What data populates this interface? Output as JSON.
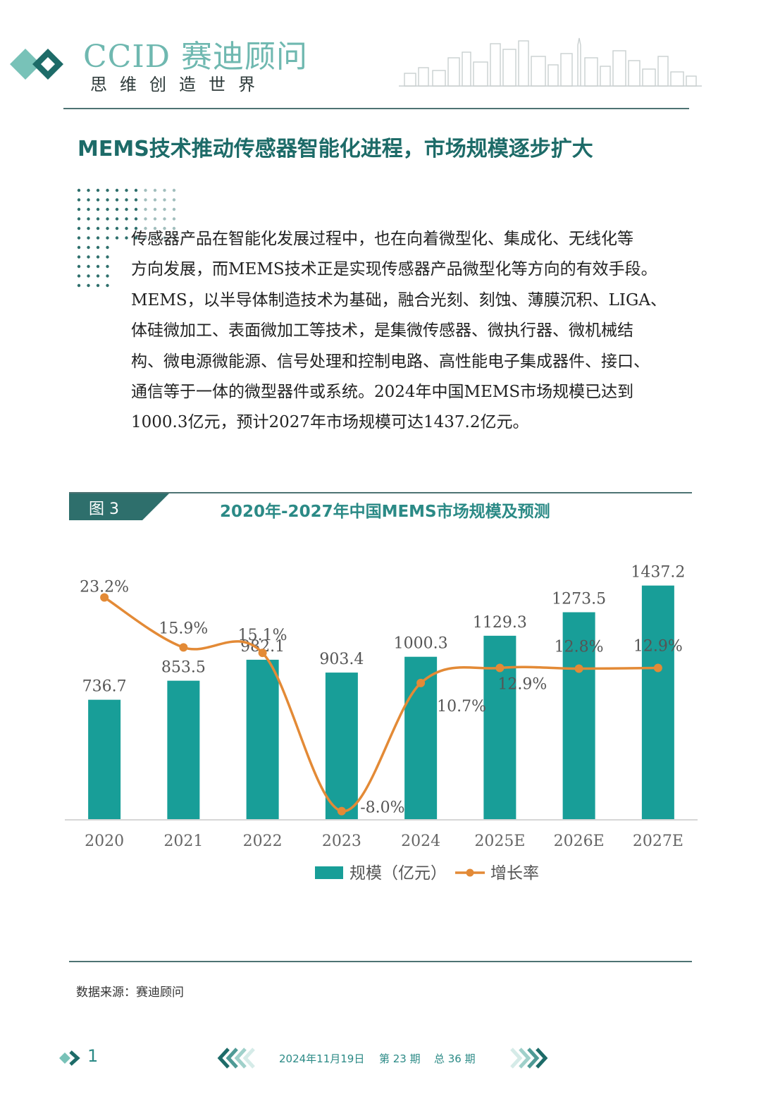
{
  "colors": {
    "teal": "#189e98",
    "orange": "#e38a36",
    "dark_teal": "#2e6f6c",
    "rule": "#4e7373"
  },
  "header": {
    "brand_name": "CCID 赛迪顾问",
    "slogan": "思维创造世界",
    "logo_icon": "double-diamond-icon",
    "decor_icon": "city-skyline-icon"
  },
  "headline": "MEMS技术推动传感器智能化进程，市场规模逐步扩大",
  "body_lines": [
    "传感器产品在智能化发展过程中，也在向着微型化、集成化、无线化等",
    "方向发展，而MEMS技术正是实现传感器产品微型化等方向的有效手段。",
    "MEMS，以半导体制造技术为基础，融合光刻、刻蚀、薄膜沉积、LIGA、",
    "体硅微加工、表面微加工等技术，是集微传感器、微执行器、微机械结",
    "构、微电源微能源、信号处理和控制电路、高性能电子集成器件、接口、",
    "通信等于一体的微型器件或系统。2024年中国MEMS市场规模已达到",
    "1000.3亿元，预计2027年市场规模可达1437.2亿元。"
  ],
  "figure": {
    "tab_label": "图 3",
    "title": "2020年-2027年中国MEMS市场规模及预测",
    "source": "数据来源：赛迪顾问"
  },
  "chart_data": {
    "type": "bar",
    "categories": [
      "2020",
      "2021",
      "2022",
      "2023",
      "2024",
      "2025E",
      "2026E",
      "2027E"
    ],
    "series": [
      {
        "name": "规模（亿元）",
        "type": "bar",
        "axis": "left",
        "color": "#189e98",
        "values": [
          736.7,
          853.5,
          982.1,
          903.4,
          1000.3,
          1129.3,
          1273.5,
          1437.2
        ],
        "labels": [
          "736.7",
          "853.5",
          "982.1",
          "903.4",
          "1000.3",
          "1129.3",
          "1273.5",
          "1437.2"
        ]
      },
      {
        "name": "增长率",
        "type": "line",
        "axis": "right",
        "color": "#e38a36",
        "values": [
          23.2,
          15.9,
          15.1,
          -8.0,
          10.7,
          12.9,
          12.8,
          12.9
        ],
        "labels": [
          "23.2%",
          "15.9%",
          "15.1%",
          "-8.0%",
          "10.7%",
          "12.9%",
          "12.8%",
          "12.9%"
        ]
      }
    ],
    "legend": [
      {
        "label": "规模（亿元）",
        "marker": "bar"
      },
      {
        "label": "增长率",
        "marker": "line"
      }
    ],
    "legend_position": "bottom",
    "ylim_left": [
      0,
      1600
    ],
    "ylim_right": [
      -10,
      25
    ],
    "grid": false
  },
  "footer": {
    "page_number": "1",
    "date": "2024年11月19日",
    "issue": "第 23 期",
    "total": "总 36 期"
  }
}
